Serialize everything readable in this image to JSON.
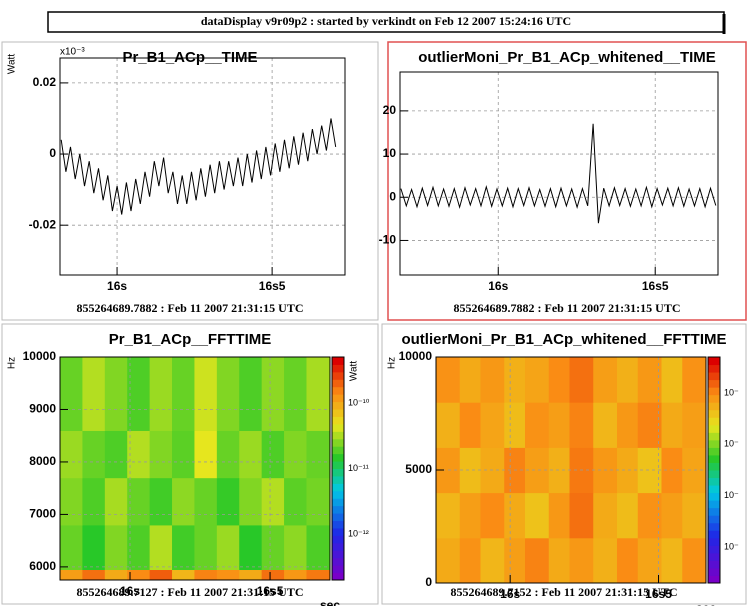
{
  "header": {
    "title": "dataDisplay v9r09p2 : started by verkindt on Feb 12 2007 15:24:16 UTC"
  },
  "chart_data": [
    {
      "type": "line",
      "title": "Pr_B1_ACp__TIME",
      "ylabel": "Watt",
      "y_multiplier": "x10⁻³",
      "footnote": "855264689.7882 : Feb 11 2007 21:31:15 UTC",
      "color": "#000000",
      "grid": true,
      "xlim": [
        15.816,
        16.735
      ],
      "ylim": [
        -0.034,
        0.027
      ],
      "xticks": [
        {
          "value": 16,
          "label": "16s"
        },
        {
          "value": 16.5,
          "label": "16s5"
        }
      ],
      "yticks": [
        0.02,
        0,
        -0.02
      ],
      "x": [
        15.82,
        15.835,
        15.85,
        15.865,
        15.88,
        15.895,
        15.91,
        15.925,
        15.94,
        15.955,
        15.97,
        15.985,
        16.0,
        16.015,
        16.03,
        16.045,
        16.06,
        16.075,
        16.09,
        16.105,
        16.12,
        16.135,
        16.15,
        16.165,
        16.18,
        16.195,
        16.21,
        16.225,
        16.24,
        16.255,
        16.27,
        16.285,
        16.3,
        16.315,
        16.33,
        16.345,
        16.36,
        16.375,
        16.39,
        16.405,
        16.42,
        16.435,
        16.45,
        16.465,
        16.48,
        16.495,
        16.51,
        16.525,
        16.54,
        16.555,
        16.57,
        16.585,
        16.6,
        16.615,
        16.63,
        16.645,
        16.66,
        16.675,
        16.69,
        16.705
      ],
      "values": [
        0.004,
        -0.005,
        0.002,
        -0.007,
        0.0,
        -0.009,
        -0.002,
        -0.011,
        -0.004,
        -0.013,
        -0.006,
        -0.016,
        -0.009,
        -0.017,
        -0.008,
        -0.016,
        -0.007,
        -0.014,
        -0.005,
        -0.012,
        -0.002,
        -0.009,
        -0.001,
        -0.011,
        -0.005,
        -0.014,
        -0.006,
        -0.014,
        -0.005,
        -0.013,
        -0.004,
        -0.012,
        -0.003,
        -0.011,
        -0.002,
        -0.01,
        -0.002,
        -0.009,
        -0.001,
        -0.009,
        0.0,
        -0.008,
        0.001,
        -0.007,
        0.002,
        -0.006,
        0.003,
        -0.005,
        0.004,
        -0.004,
        0.005,
        -0.003,
        0.006,
        -0.002,
        0.007,
        0.0,
        0.008,
        0.001,
        0.01,
        0.002
      ]
    },
    {
      "type": "line",
      "title": "outlierMoni_Pr_B1_ACp_whitened__TIME",
      "footnote": "855264689.7882 : Feb 11 2007 21:31:15 UTC",
      "color": "#000000",
      "grid": true,
      "xlim": [
        15.687,
        16.7
      ],
      "ylim": [
        -18,
        29
      ],
      "xticks": [
        {
          "value": 16,
          "label": "16s"
        },
        {
          "value": 16.5,
          "label": "16s5"
        }
      ],
      "yticks": [
        20,
        10,
        0,
        -10
      ],
      "x": [
        15.69,
        15.707,
        15.724,
        15.741,
        15.758,
        15.775,
        15.792,
        15.809,
        15.826,
        15.843,
        15.86,
        15.877,
        15.894,
        15.911,
        15.928,
        15.945,
        15.962,
        15.979,
        15.996,
        16.013,
        16.03,
        16.047,
        16.064,
        16.081,
        16.098,
        16.115,
        16.132,
        16.149,
        16.166,
        16.183,
        16.2,
        16.217,
        16.234,
        16.251,
        16.268,
        16.285,
        16.302,
        16.319,
        16.336,
        16.353,
        16.37,
        16.387,
        16.404,
        16.421,
        16.438,
        16.455,
        16.472,
        16.489,
        16.506,
        16.523,
        16.54,
        16.557,
        16.574,
        16.591,
        16.608,
        16.625,
        16.642,
        16.659,
        16.676,
        16.693
      ],
      "values": [
        2,
        -2,
        1.8,
        -2.2,
        2.1,
        -1.9,
        2.3,
        -2,
        1.9,
        -2.1,
        2,
        -2.3,
        2.2,
        -1.8,
        2,
        -2,
        2.4,
        -2.1,
        1.9,
        -2,
        2.1,
        -2.2,
        2,
        -1.9,
        2.2,
        -2,
        1.8,
        -2.1,
        2,
        -2.2,
        2.1,
        -2,
        1.9,
        -2.3,
        2,
        -2,
        17,
        -6,
        2.1,
        -2,
        2.2,
        -1.9,
        2,
        -2.1,
        1.9,
        -2,
        2.3,
        -2.2,
        2,
        -1.8,
        2.1,
        -2,
        2.2,
        -2.1,
        1.9,
        -2,
        2,
        -2.2,
        2.1,
        -1.9
      ]
    },
    {
      "type": "heatmap",
      "title": "Pr_B1_ACp__FFTTIME",
      "ylabel": "Hz",
      "xlabel": "sec",
      "zlabel": "Watt",
      "footnote": "855264689.7127 : Feb 11 2007 21:31:15 UTC",
      "grid": true,
      "xlim": [
        15.75,
        16.714
      ],
      "ylim": [
        5750,
        10000
      ],
      "zlim": [
        0,
        1
      ],
      "xticks": [
        {
          "value": 16,
          "label": "16s"
        },
        {
          "value": 16.5,
          "label": "16s5"
        }
      ],
      "yticks": [
        10000,
        9000,
        8000,
        7000,
        6000
      ],
      "colorbar_labels": [
        "10⁻¹⁰",
        "10⁻¹¹",
        "10⁻¹²"
      ],
      "xbins": [
        15.75,
        15.83,
        15.91,
        15.99,
        16.07,
        16.15,
        16.23,
        16.31,
        16.39,
        16.47,
        16.55,
        16.63,
        16.714
      ],
      "ybins": [
        5750,
        5950,
        6800,
        7700,
        8600,
        10000
      ],
      "z": [
        [
          0.82,
          0.88,
          0.8,
          0.85,
          0.9,
          0.78,
          0.86,
          0.84,
          0.8,
          0.88,
          0.83,
          0.87
        ],
        [
          0.6,
          0.55,
          0.62,
          0.58,
          0.66,
          0.57,
          0.6,
          0.64,
          0.55,
          0.6,
          0.63,
          0.58
        ],
        [
          0.62,
          0.58,
          0.65,
          0.6,
          0.57,
          0.63,
          0.6,
          0.56,
          0.62,
          0.66,
          0.59,
          0.61
        ],
        [
          0.64,
          0.6,
          0.58,
          0.66,
          0.62,
          0.59,
          0.7,
          0.6,
          0.64,
          0.58,
          0.62,
          0.6
        ],
        [
          0.6,
          0.66,
          0.62,
          0.58,
          0.64,
          0.6,
          0.68,
          0.62,
          0.58,
          0.63,
          0.6,
          0.65
        ]
      ]
    },
    {
      "type": "heatmap",
      "title": "outlierMoni_Pr_B1_ACp_whitened__FFTTIME",
      "ylabel": "Hz",
      "xlabel": "sec",
      "footnote": "855264689.7152 : Feb 11 2007 21:31:15 UTC",
      "grid": true,
      "xlim": [
        15.75,
        16.66
      ],
      "ylim": [
        0,
        10000
      ],
      "zlim": [
        0,
        1
      ],
      "xticks": [
        {
          "value": 16,
          "label": "16s"
        },
        {
          "value": 16.5,
          "label": "16s5"
        }
      ],
      "yticks": [
        10000,
        5000,
        0
      ],
      "colorbar_labels": [
        "10⁻",
        "10⁻",
        "10⁻",
        "10⁻"
      ],
      "xbins": [
        15.75,
        15.83,
        15.9,
        15.98,
        16.05,
        16.13,
        16.2,
        16.28,
        16.36,
        16.43,
        16.51,
        16.58,
        16.66
      ],
      "ybins": [
        0,
        2000,
        4000,
        6000,
        8000,
        10000
      ],
      "z": [
        [
          0.8,
          0.84,
          0.78,
          0.82,
          0.86,
          0.8,
          0.83,
          0.79,
          0.85,
          0.81,
          0.78,
          0.84
        ],
        [
          0.78,
          0.82,
          0.85,
          0.8,
          0.76,
          0.83,
          0.88,
          0.8,
          0.77,
          0.84,
          0.82,
          0.79
        ],
        [
          0.83,
          0.77,
          0.8,
          0.86,
          0.82,
          0.79,
          0.87,
          0.83,
          0.8,
          0.76,
          0.85,
          0.81
        ],
        [
          0.79,
          0.85,
          0.81,
          0.77,
          0.84,
          0.82,
          0.86,
          0.78,
          0.83,
          0.86,
          0.8,
          0.82
        ],
        [
          0.84,
          0.8,
          0.83,
          0.79,
          0.81,
          0.85,
          0.88,
          0.82,
          0.79,
          0.83,
          0.77,
          0.84
        ]
      ]
    }
  ]
}
